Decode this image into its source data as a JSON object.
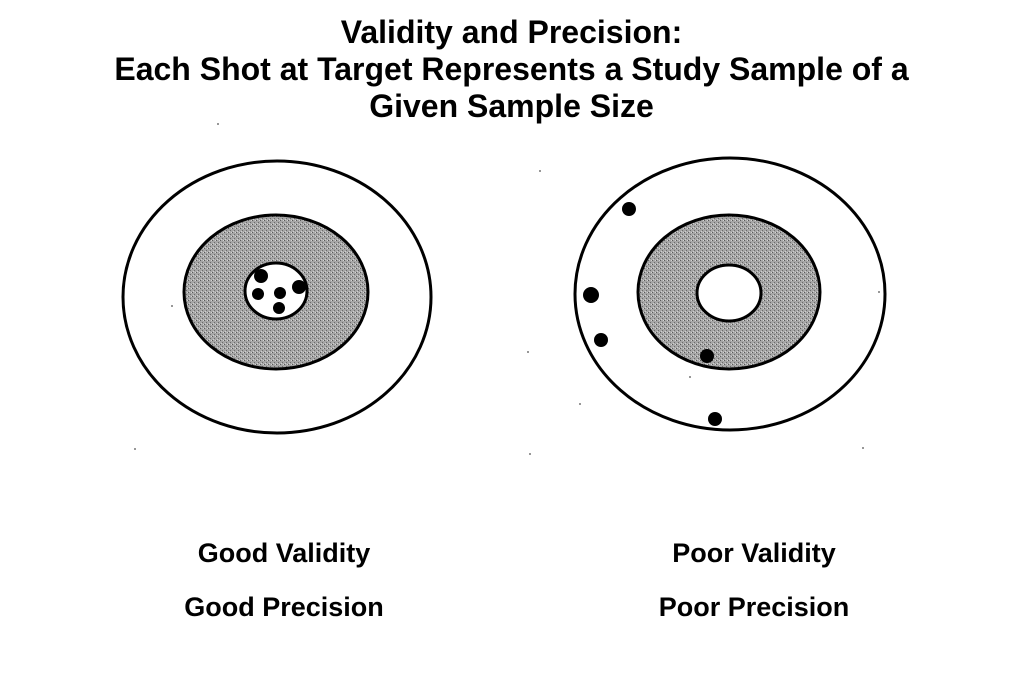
{
  "title": {
    "line1": "Validity and Precision:",
    "line2": "Each Shot at Target Represents a Study Sample of a",
    "line3": "Given Sample Size"
  },
  "targets": [
    {
      "caption_validity": "Good Validity",
      "caption_precision": "Good Precision",
      "validity": "good",
      "precision": "good"
    },
    {
      "caption_validity": "Poor Validity",
      "caption_precision": "Poor Precision",
      "validity": "poor",
      "precision": "poor"
    }
  ],
  "colors": {
    "ring_fill": "#9a9a9a",
    "outline": "#000000",
    "shot": "#000000",
    "background": "#ffffff"
  }
}
